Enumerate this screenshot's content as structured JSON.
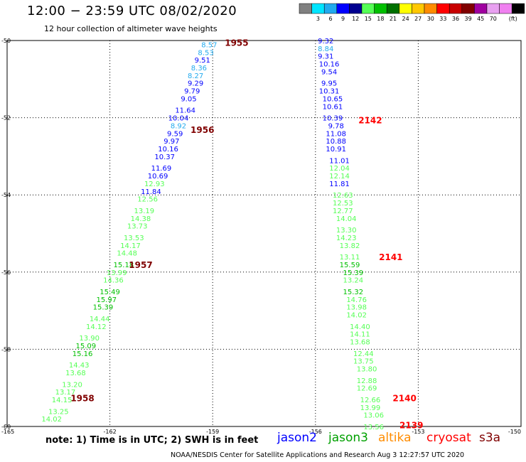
{
  "header": {
    "title": "12:00 − 23:59 UTC 08/02/2020",
    "subtitle": "12 hour collection of altimeter wave heights"
  },
  "footer": {
    "note": "note:  1) Time is in UTC;  2) SWH is in feet",
    "credit": "NOAA/NESDIS Center for Satellite Applications and Research     Aug  3 12:27:57 UTC 2020"
  },
  "legend": {
    "unit": "(ft)",
    "bins": [
      {
        "label": "",
        "color": "#808080"
      },
      {
        "label": "3",
        "color": "#00e5ff"
      },
      {
        "label": "6",
        "color": "#22aaee"
      },
      {
        "label": "9",
        "color": "#0000ff"
      },
      {
        "label": "12",
        "color": "#000090"
      },
      {
        "label": "15",
        "color": "#55ff55"
      },
      {
        "label": "18",
        "color": "#00c000"
      },
      {
        "label": "21",
        "color": "#007000"
      },
      {
        "label": "24",
        "color": "#ffff00"
      },
      {
        "label": "27",
        "color": "#ffc800"
      },
      {
        "label": "30",
        "color": "#ff8c00"
      },
      {
        "label": "33",
        "color": "#ff0000"
      },
      {
        "label": "36",
        "color": "#c80000"
      },
      {
        "label": "39",
        "color": "#800000"
      },
      {
        "label": "45",
        "color": "#a000a0"
      },
      {
        "label": "70",
        "color": "#e8a0f0"
      },
      {
        "label": "",
        "color": "#f080f0"
      },
      {
        "label": "",
        "color": "#000000"
      }
    ]
  },
  "satellites": [
    {
      "name": "jason2",
      "color": "#0000ff"
    },
    {
      "name": "jason3",
      "color": "#00a000"
    },
    {
      "name": "altika",
      "color": "#ff8c00"
    },
    {
      "name": "cryosat",
      "color": "#ff0000"
    },
    {
      "name": "s3a",
      "color": "#800000"
    }
  ],
  "chart_data": {
    "type": "scatter",
    "xlabel": "",
    "ylabel": "",
    "xlim": [
      -165,
      -150
    ],
    "ylim": [
      -60,
      -50
    ],
    "xticks": [
      "-165",
      "-162",
      "-159",
      "-156",
      "-153",
      "-150"
    ],
    "xtick_values": [
      -165,
      -162,
      -159,
      -156,
      -153,
      -150
    ],
    "yticks": [
      "-50",
      "-52",
      "-54",
      "-56",
      "-58",
      "-60"
    ],
    "ytick_values": [
      -50,
      -52,
      -54,
      -56,
      -58,
      -60
    ],
    "grid": true,
    "series": [
      {
        "name": "s3a",
        "values": [
          {
            "x": -159.1,
            "y": -50.1,
            "v": "8.57",
            "color": "#22aaee"
          },
          {
            "x": -159.2,
            "y": -50.3,
            "v": "8.53",
            "color": "#22aaee"
          },
          {
            "x": -159.3,
            "y": -50.5,
            "v": "9.51",
            "color": "#0000ff"
          },
          {
            "x": -159.4,
            "y": -50.7,
            "v": "8.36",
            "color": "#22aaee"
          },
          {
            "x": -159.5,
            "y": -50.9,
            "v": "8.27",
            "color": "#22aaee"
          },
          {
            "x": -159.5,
            "y": -51.1,
            "v": "9.29",
            "color": "#0000ff"
          },
          {
            "x": -159.6,
            "y": -51.3,
            "v": "9.79",
            "color": "#0000ff"
          },
          {
            "x": -159.7,
            "y": -51.5,
            "v": "9.05",
            "color": "#0000ff"
          },
          {
            "x": -159.8,
            "y": -51.8,
            "v": "11.64",
            "color": "#0000ff"
          },
          {
            "x": -160.0,
            "y": -52.0,
            "v": "10.04",
            "color": "#0000ff"
          },
          {
            "x": -160.0,
            "y": -52.2,
            "v": "8.92",
            "color": "#22aaee"
          },
          {
            "x": -160.1,
            "y": -52.4,
            "v": "9.59",
            "color": "#0000ff"
          },
          {
            "x": -160.2,
            "y": -52.6,
            "v": "9.97",
            "color": "#0000ff"
          },
          {
            "x": -160.3,
            "y": -52.8,
            "v": "10.16",
            "color": "#0000ff"
          },
          {
            "x": -160.4,
            "y": -53.0,
            "v": "10.37",
            "color": "#0000ff"
          },
          {
            "x": -160.5,
            "y": -53.3,
            "v": "11.69",
            "color": "#0000ff"
          },
          {
            "x": -160.6,
            "y": -53.5,
            "v": "10.69",
            "color": "#0000ff"
          },
          {
            "x": -160.7,
            "y": -53.7,
            "v": "12.93",
            "color": "#55ff55"
          },
          {
            "x": -160.8,
            "y": -53.9,
            "v": "11.84",
            "color": "#0000ff"
          },
          {
            "x": -160.9,
            "y": -54.1,
            "v": "12.56",
            "color": "#55ff55"
          },
          {
            "x": -161.0,
            "y": -54.4,
            "v": "13.19",
            "color": "#55ff55"
          },
          {
            "x": -161.1,
            "y": -54.6,
            "v": "14.38",
            "color": "#55ff55"
          },
          {
            "x": -161.2,
            "y": -54.8,
            "v": "13.73",
            "color": "#55ff55"
          },
          {
            "x": -161.3,
            "y": -55.1,
            "v": "13.53",
            "color": "#55ff55"
          },
          {
            "x": -161.4,
            "y": -55.3,
            "v": "14.17",
            "color": "#55ff55"
          },
          {
            "x": -161.5,
            "y": -55.5,
            "v": "14.48",
            "color": "#55ff55"
          },
          {
            "x": -161.6,
            "y": -55.8,
            "v": "15.18",
            "color": "#00c000"
          },
          {
            "x": -161.8,
            "y": -56.0,
            "v": "13.99",
            "color": "#55ff55"
          },
          {
            "x": -161.9,
            "y": -56.2,
            "v": "14.36",
            "color": "#55ff55"
          },
          {
            "x": -162.0,
            "y": -56.5,
            "v": "15.49",
            "color": "#00c000"
          },
          {
            "x": -162.1,
            "y": -56.7,
            "v": "15.97",
            "color": "#00c000"
          },
          {
            "x": -162.2,
            "y": -56.9,
            "v": "15.39",
            "color": "#00c000"
          },
          {
            "x": -162.3,
            "y": -57.2,
            "v": "14.44",
            "color": "#55ff55"
          },
          {
            "x": -162.4,
            "y": -57.4,
            "v": "14.12",
            "color": "#55ff55"
          },
          {
            "x": -162.6,
            "y": -57.7,
            "v": "13.90",
            "color": "#55ff55"
          },
          {
            "x": -162.7,
            "y": -57.9,
            "v": "15.09",
            "color": "#00c000"
          },
          {
            "x": -162.8,
            "y": -58.1,
            "v": "15.16",
            "color": "#00c000"
          },
          {
            "x": -162.9,
            "y": -58.4,
            "v": "14.43",
            "color": "#55ff55"
          },
          {
            "x": -163.0,
            "y": -58.6,
            "v": "13.68",
            "color": "#55ff55"
          },
          {
            "x": -163.1,
            "y": -58.9,
            "v": "13.20",
            "color": "#55ff55"
          },
          {
            "x": -163.3,
            "y": -59.1,
            "v": "13.17",
            "color": "#55ff55"
          },
          {
            "x": -163.4,
            "y": -59.3,
            "v": "14.15",
            "color": "#55ff55"
          },
          {
            "x": -163.5,
            "y": -59.6,
            "v": "13.25",
            "color": "#55ff55"
          },
          {
            "x": -163.7,
            "y": -59.8,
            "v": "14.02",
            "color": "#55ff55"
          }
        ]
      },
      {
        "name": "cryosat",
        "values": [
          {
            "x": -155.7,
            "y": -50.0,
            "v": "9.32",
            "color": "#0000ff"
          },
          {
            "x": -155.7,
            "y": -50.2,
            "v": "8.84",
            "color": "#22aaee"
          },
          {
            "x": -155.7,
            "y": -50.4,
            "v": "9.31",
            "color": "#0000ff"
          },
          {
            "x": -155.6,
            "y": -50.6,
            "v": "10.16",
            "color": "#0000ff"
          },
          {
            "x": -155.6,
            "y": -50.8,
            "v": "9.54",
            "color": "#0000ff"
          },
          {
            "x": -155.6,
            "y": -51.1,
            "v": "9.95",
            "color": "#0000ff"
          },
          {
            "x": -155.6,
            "y": -51.3,
            "v": "10.31",
            "color": "#0000ff"
          },
          {
            "x": -155.5,
            "y": -51.5,
            "v": "10.65",
            "color": "#0000ff"
          },
          {
            "x": -155.5,
            "y": -51.7,
            "v": "10.61",
            "color": "#0000ff"
          },
          {
            "x": -155.5,
            "y": -52.0,
            "v": "10.39",
            "color": "#0000ff"
          },
          {
            "x": -155.4,
            "y": -52.2,
            "v": "9.78",
            "color": "#0000ff"
          },
          {
            "x": -155.4,
            "y": -52.4,
            "v": "11.08",
            "color": "#0000ff"
          },
          {
            "x": -155.4,
            "y": -52.6,
            "v": "10.88",
            "color": "#0000ff"
          },
          {
            "x": -155.4,
            "y": -52.8,
            "v": "10.91",
            "color": "#0000ff"
          },
          {
            "x": -155.3,
            "y": -53.1,
            "v": "11.01",
            "color": "#0000ff"
          },
          {
            "x": -155.3,
            "y": -53.3,
            "v": "12.04",
            "color": "#55ff55"
          },
          {
            "x": -155.3,
            "y": -53.5,
            "v": "12.14",
            "color": "#55ff55"
          },
          {
            "x": -155.3,
            "y": -53.7,
            "v": "11.81",
            "color": "#0000ff"
          },
          {
            "x": -155.2,
            "y": -54.0,
            "v": "12.63",
            "color": "#55ff55"
          },
          {
            "x": -155.2,
            "y": -54.2,
            "v": "12.53",
            "color": "#55ff55"
          },
          {
            "x": -155.2,
            "y": -54.4,
            "v": "12.77",
            "color": "#55ff55"
          },
          {
            "x": -155.1,
            "y": -54.6,
            "v": "14.04",
            "color": "#55ff55"
          },
          {
            "x": -155.1,
            "y": -54.9,
            "v": "13.30",
            "color": "#55ff55"
          },
          {
            "x": -155.1,
            "y": -55.1,
            "v": "14.23",
            "color": "#55ff55"
          },
          {
            "x": -155.0,
            "y": -55.3,
            "v": "13.82",
            "color": "#55ff55"
          },
          {
            "x": -155.0,
            "y": -55.6,
            "v": "13.11",
            "color": "#55ff55"
          },
          {
            "x": -155.0,
            "y": -55.8,
            "v": "15.59",
            "color": "#00c000"
          },
          {
            "x": -154.9,
            "y": -56.0,
            "v": "15.39",
            "color": "#00c000"
          },
          {
            "x": -154.9,
            "y": -56.2,
            "v": "13.24",
            "color": "#55ff55"
          },
          {
            "x": -154.9,
            "y": -56.5,
            "v": "15.32",
            "color": "#00c000"
          },
          {
            "x": -154.8,
            "y": -56.7,
            "v": "14.76",
            "color": "#55ff55"
          },
          {
            "x": -154.8,
            "y": -56.9,
            "v": "13.98",
            "color": "#55ff55"
          },
          {
            "x": -154.8,
            "y": -57.1,
            "v": "14.02",
            "color": "#55ff55"
          },
          {
            "x": -154.7,
            "y": -57.4,
            "v": "14.40",
            "color": "#55ff55"
          },
          {
            "x": -154.7,
            "y": -57.6,
            "v": "14.11",
            "color": "#55ff55"
          },
          {
            "x": -154.7,
            "y": -57.8,
            "v": "13.68",
            "color": "#55ff55"
          },
          {
            "x": -154.6,
            "y": -58.1,
            "v": "12.44",
            "color": "#55ff55"
          },
          {
            "x": -154.6,
            "y": -58.3,
            "v": "13.75",
            "color": "#55ff55"
          },
          {
            "x": -154.5,
            "y": -58.5,
            "v": "13.80",
            "color": "#55ff55"
          },
          {
            "x": -154.5,
            "y": -58.8,
            "v": "12.88",
            "color": "#55ff55"
          },
          {
            "x": -154.5,
            "y": -59.0,
            "v": "12.69",
            "color": "#55ff55"
          },
          {
            "x": -154.4,
            "y": -59.3,
            "v": "12.66",
            "color": "#55ff55"
          },
          {
            "x": -154.4,
            "y": -59.5,
            "v": "13.99",
            "color": "#55ff55"
          },
          {
            "x": -154.3,
            "y": -59.7,
            "v": "13.06",
            "color": "#55ff55"
          },
          {
            "x": -154.3,
            "y": -60.0,
            "v": "13.56",
            "color": "#55ff55"
          }
        ]
      }
    ],
    "annotations": [
      {
        "x": -158.3,
        "y": -50.05,
        "text": "1955",
        "color": "#800000"
      },
      {
        "x": -159.3,
        "y": -52.3,
        "text": "1956",
        "color": "#800000"
      },
      {
        "x": -161.1,
        "y": -55.8,
        "text": "1957",
        "color": "#800000"
      },
      {
        "x": -162.8,
        "y": -59.25,
        "text": "1958",
        "color": "#800000"
      },
      {
        "x": -154.4,
        "y": -52.05,
        "text": "2142",
        "color": "#ff0000"
      },
      {
        "x": -153.8,
        "y": -55.6,
        "text": "2141",
        "color": "#ff0000"
      },
      {
        "x": -153.4,
        "y": -59.25,
        "text": "2140",
        "color": "#ff0000"
      },
      {
        "x": -153.2,
        "y": -59.95,
        "text": "2139",
        "color": "#ff0000"
      }
    ]
  }
}
